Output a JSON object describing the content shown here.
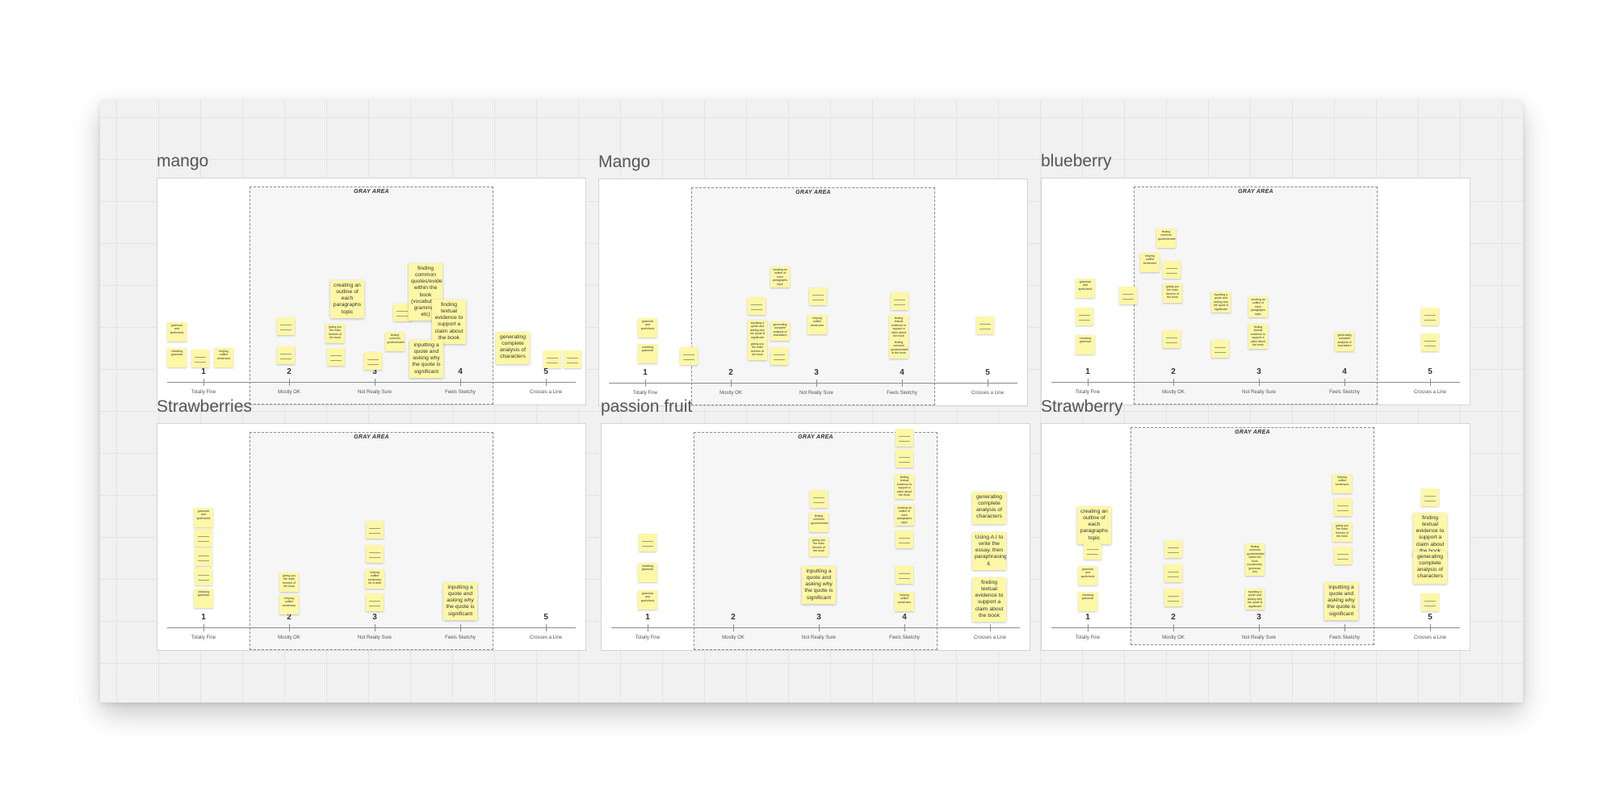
{
  "scale": {
    "gray_area_label": "GRAY AREA",
    "numbers": [
      "1",
      "2",
      "3",
      "4",
      "5"
    ],
    "labels": [
      "Totally Fine",
      "Mostly OK",
      "Not Really Sure",
      "Feels Sketchy",
      "Crosses a Line"
    ]
  },
  "frames": [
    {
      "title": "mango",
      "notes": [
        {
          "text": "grammar and spellcheck",
          "col": 0.78,
          "y": 178
        },
        {
          "text": "checking grammar",
          "col": 0.78,
          "y": 210
        },
        {
          "lines": true,
          "col": 1.0,
          "y": 212
        },
        {
          "text": "helping outline sentences"
        },
        {
          "lines": true,
          "col": 2.0,
          "y": 172
        },
        {
          "lines": true,
          "col": 2.0,
          "y": 208
        },
        {
          "text": "creating an outline of each paragraphs topic",
          "big": true
        },
        {
          "text": "giving you the main themes of the book"
        },
        {
          "lines": true,
          "col": 2.5,
          "y": 208
        },
        {
          "lines": true,
          "col": 3.0,
          "y": 215
        },
        {
          "text": "finding common quotes/evidence"
        },
        {
          "lines": true,
          "col": 3.3,
          "y": 155
        },
        {
          "text": "finding common quotes/evidence within the book (vocabulary, grammar, etc)",
          "big": true
        },
        {
          "text": "finding textual evidence to support a claim about the book",
          "big": true
        },
        {
          "text": "inputting a quote and asking why the quote is significant",
          "big": true
        },
        {
          "text": "generating complete analysis of characters",
          "big": true
        },
        {
          "lines": true,
          "col": 5.0,
          "y": 213
        },
        {
          "lines": true,
          "col": 5.3,
          "y": 213
        }
      ]
    },
    {
      "title": "Mango",
      "notes": [
        {
          "text": "grammar and spellcheck"
        },
        {
          "text": "checking grammar"
        },
        {
          "lines": true
        },
        {
          "lines": true
        },
        {
          "text": "creating an outline of each paragraphs topic"
        },
        {
          "text": "inputting a quote and asking why the quote is significant"
        },
        {
          "text": "generating complete analysis of characters"
        },
        {
          "text": "giving you the main themes of the book"
        },
        {
          "lines": true
        },
        {
          "text": "helping outline sentences"
        },
        {
          "lines": true
        },
        {
          "text": "finding textual evidence to support a claim about the book"
        },
        {
          "text": "finding common quotes/evidence in the book"
        },
        {
          "lines": true
        },
        {
          "lines": true
        }
      ]
    },
    {
      "title": "blueberry",
      "notes": [
        {
          "text": "grammar and spellcheck"
        },
        {
          "lines": true
        },
        {
          "text": "checking grammar"
        },
        {
          "lines": true
        },
        {
          "text": "helping outline sentences"
        },
        {
          "text": "finding common quotes/evidence"
        },
        {
          "lines": true
        },
        {
          "text": "giving you the main themes of the book"
        },
        {
          "lines": true
        },
        {
          "text": "inputting a quote and asking why the quote is significant"
        },
        {
          "text": "creating an outline of each paragraphs topic"
        },
        {
          "text": "finding textual evidence to support a claim about the book"
        },
        {
          "lines": true
        },
        {
          "text": "generating complete analysis of characters"
        },
        {
          "lines": true
        },
        {
          "lines": true
        }
      ]
    },
    {
      "title": "Strawberries",
      "notes": [
        {
          "text": "grammar and spellcheck"
        },
        {
          "lines": true
        },
        {
          "lines": true
        },
        {
          "lines": true
        },
        {
          "text": "checking grammar"
        },
        {
          "text": "giving you the main themes of the book"
        },
        {
          "text": "helping outline sentences"
        },
        {
          "lines": true
        },
        {
          "lines": true
        },
        {
          "text": "helping outline sentences for a draft"
        },
        {
          "lines": true
        },
        {
          "text": "inputting a quote and asking why the quote is significant",
          "big": true
        }
      ]
    },
    {
      "title": "passion fruit",
      "notes": [
        {
          "lines": true
        },
        {
          "text": "checking grammar"
        },
        {
          "text": "grammar and spellcheck"
        },
        {
          "lines": true
        },
        {
          "text": "finding common quotes/evidence"
        },
        {
          "text": "giving you the main themes of the book"
        },
        {
          "text": "inputting a quote and asking why the quote is significant",
          "big": true
        },
        {
          "lines": true
        },
        {
          "lines": true
        },
        {
          "text": "finding textual evidence to support a claim about the book"
        },
        {
          "text": "creating an outline of each paragraphs topic"
        },
        {
          "lines": true
        },
        {
          "text": "helping outline sentences"
        },
        {
          "lines": true
        },
        {
          "text": "generating complete analysis of characters",
          "big": true
        },
        {
          "text": "Using A.I to write the essay, then paraphrasing it.",
          "big": true
        },
        {
          "text": "finding textual evidence to support a claim about the book",
          "big": true
        }
      ]
    },
    {
      "title": "Strawberry",
      "notes": [
        {
          "text": "creating an outline of each paragraphs topic",
          "big": true
        },
        {
          "lines": true
        },
        {
          "text": "grammar and spellcheck"
        },
        {
          "text": "checking grammar"
        },
        {
          "lines": true
        },
        {
          "lines": true
        },
        {
          "lines": true
        },
        {
          "text": "finding common quotes/evidence within the book (vocabulary, grammar, etc)"
        },
        {
          "text": "inputting a quote and asking why the quote is significant"
        },
        {
          "text": "helping outline sentences"
        },
        {
          "lines": true
        },
        {
          "text": "giving you the main themes of the book"
        },
        {
          "lines": true
        },
        {
          "text": "inputting a quote and asking why the quote is significant"
        },
        {
          "lines": true
        },
        {
          "text": "finding textual evidence to support a claim about the book",
          "big": true
        },
        {
          "text": "generating complete analysis of characters",
          "big": true
        },
        {
          "lines": true
        }
      ]
    }
  ]
}
